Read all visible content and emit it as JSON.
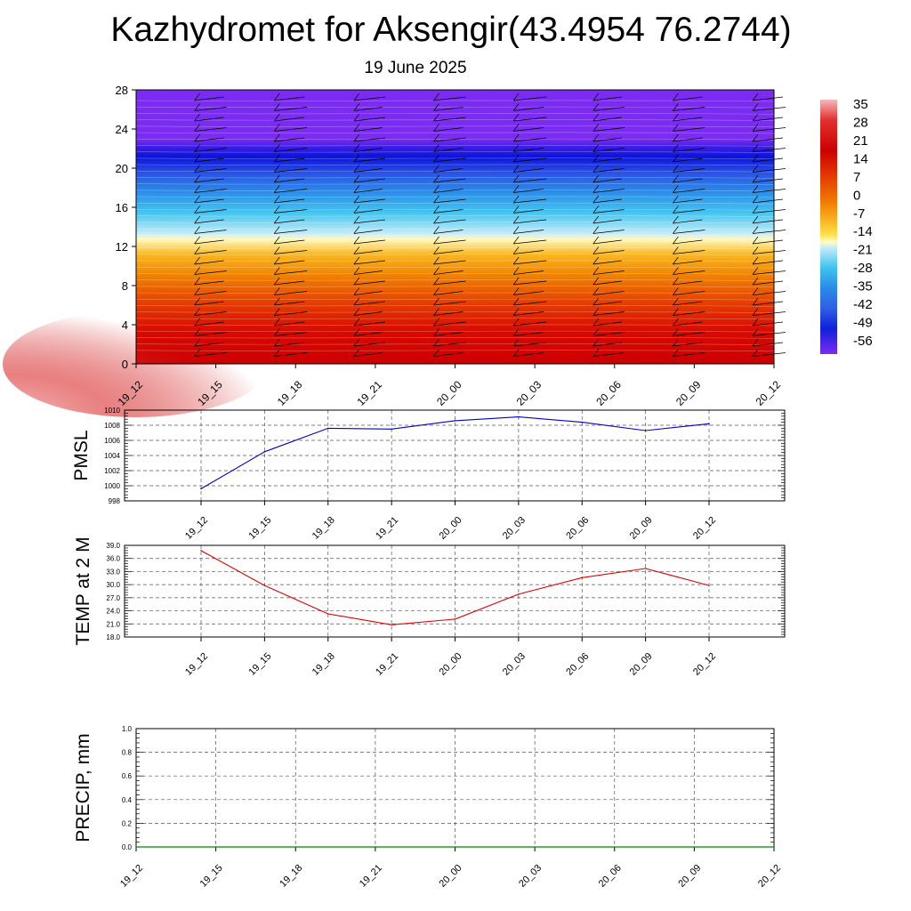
{
  "title": "Kazhydromet for Aksengir(43.4954 76.2744)",
  "subtitle": "19 June 2025",
  "time_labels": [
    "19_12",
    "19_15",
    "19_18",
    "19_21",
    "20_00",
    "20_03",
    "20_06",
    "20_09",
    "20_12"
  ],
  "chart_data": [
    {
      "type": "heatmap",
      "name": "temperature-height-section",
      "yticks": [
        "0",
        "4",
        "8",
        "12",
        "16",
        "20",
        "24",
        "28"
      ],
      "ylim": [
        0,
        28
      ],
      "colorbar": {
        "labels": [
          "35",
          "28",
          "21",
          "14",
          "7",
          "0",
          "-7",
          "-14",
          "-21",
          "-28",
          "-35",
          "-42",
          "-49",
          "-56"
        ],
        "colors": [
          "#f5b0b0",
          "#e63030",
          "#cc0000",
          "#e23a00",
          "#ef6a00",
          "#f79a10",
          "#fdd535",
          "#fffcc8",
          "#b8e4f5",
          "#3cc4f0",
          "#2a8be8",
          "#2e5fe6",
          "#1a2ee0",
          "#7b2cf0"
        ]
      }
    },
    {
      "type": "line",
      "ylabel": "PMSL",
      "ylim": [
        998,
        1010
      ],
      "yticks": [
        "998",
        "1000",
        "1002",
        "1004",
        "1006",
        "1008",
        "1010"
      ],
      "x": [
        "19_12",
        "19_15",
        "19_18",
        "19_21",
        "20_00",
        "20_03",
        "20_06",
        "20_09",
        "20_12"
      ],
      "values": [
        999.6,
        1004.5,
        1007.6,
        1007.5,
        1008.6,
        1009.1,
        1008.4,
        1007.3,
        1008.2
      ],
      "color": "#0000cc"
    },
    {
      "type": "line",
      "ylabel": "TEMP at 2 M",
      "ylim": [
        18,
        39
      ],
      "yticks": [
        "18.0",
        "21.0",
        "24.0",
        "27.0",
        "30.0",
        "33.0",
        "36.0",
        "39.0"
      ],
      "x": [
        "19_12",
        "19_15",
        "19_18",
        "19_21",
        "20_00",
        "20_03",
        "20_06",
        "20_09",
        "20_12"
      ],
      "values": [
        37.8,
        29.8,
        23.3,
        20.8,
        22.1,
        27.8,
        31.6,
        33.7,
        29.8
      ],
      "color": "#dd0000"
    },
    {
      "type": "line",
      "ylabel": "PRECIP, mm",
      "ylim": [
        0,
        1
      ],
      "yticks": [
        "0.0",
        "0.2",
        "0.4",
        "0.6",
        "0.8",
        "1.0"
      ],
      "x": [
        "19_12",
        "19_15",
        "19_18",
        "19_21",
        "20_00",
        "20_03",
        "20_06",
        "20_09",
        "20_12"
      ],
      "values": [
        0,
        0,
        0,
        0,
        0,
        0,
        0,
        0,
        0
      ],
      "color": "#008800"
    }
  ]
}
